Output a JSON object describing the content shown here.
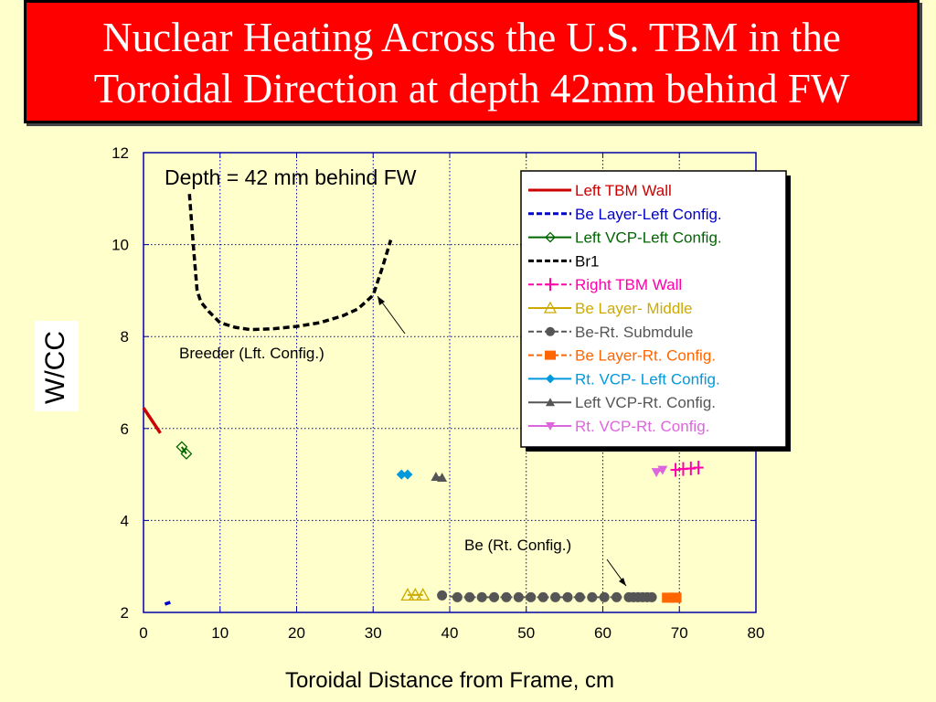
{
  "slide": {
    "title_line1": "Nuclear Heating Across the U.S. TBM in the",
    "title_line2": "Toroidal Direction at depth 42mm behind FW"
  },
  "chart_data": {
    "type": "scatter",
    "title": "",
    "xlabel": "Toroidal Distance from Frame, cm",
    "ylabel": "W/CC",
    "xlim": [
      0,
      80
    ],
    "ylim": [
      2,
      12
    ],
    "x_ticks": [
      "0",
      "10",
      "20",
      "30",
      "40",
      "50",
      "60",
      "70",
      "80"
    ],
    "y_ticks": [
      "2",
      "4",
      "6",
      "8",
      "10",
      "12"
    ],
    "grid": true,
    "legend_position": "top-right",
    "annotations": {
      "depth": "Depth = 42 mm behind FW",
      "breeder": "Breeder (Lft. Config.)",
      "be": "Be (Rt. Config.)"
    },
    "series": [
      {
        "name": "Left TBM Wall",
        "color": "#cc0000",
        "style": "solid",
        "marker": "none",
        "x": [
          0.0,
          0.8,
          1.6,
          2.2
        ],
        "y": [
          6.45,
          6.25,
          6.05,
          5.9
        ]
      },
      {
        "name": "Be Layer-Left Config.",
        "color": "#0000cc",
        "style": "dashed",
        "marker": "none",
        "x": [
          2.8,
          3.5
        ],
        "y": [
          2.18,
          2.22
        ]
      },
      {
        "name": "Left VCP-Left Config.",
        "color": "#006600",
        "style": "solid",
        "marker": "diamond-open",
        "x": [
          5.0,
          5.6
        ],
        "y": [
          5.6,
          5.45
        ]
      },
      {
        "name": "Br1",
        "color": "#000000",
        "style": "dashed",
        "marker": "none",
        "x": [
          6.0,
          6.5,
          7.0,
          7.5,
          8.5,
          10.0,
          12.0,
          14.0,
          17.0,
          20.0,
          23.0,
          26.0,
          28.0,
          30.0,
          31.2,
          32.3
        ],
        "y": [
          11.1,
          10.0,
          9.0,
          8.75,
          8.55,
          8.3,
          8.2,
          8.15,
          8.17,
          8.22,
          8.3,
          8.45,
          8.6,
          8.9,
          9.5,
          10.1
        ]
      },
      {
        "name": "Right TBM Wall",
        "color": "#ff00aa",
        "style": "dashed",
        "marker": "plus",
        "x": [
          69.5,
          70.5,
          71.5,
          72.5
        ],
        "y": [
          5.1,
          5.12,
          5.13,
          5.15
        ]
      },
      {
        "name": "Be Layer- Middle",
        "color": "#ccaa00",
        "style": "solid",
        "marker": "triangle-open",
        "x": [
          34.5,
          35.5,
          36.5
        ],
        "y": [
          2.38,
          2.38,
          2.38
        ]
      },
      {
        "name": "Be-Rt. Submdule",
        "color": "#555555",
        "style": "dashed",
        "marker": "circle",
        "x": [
          39.0,
          41.0,
          42.6,
          44.2,
          45.8,
          47.4,
          49.0,
          50.6,
          52.2,
          53.8,
          55.4,
          57.0,
          58.6,
          60.2,
          61.8,
          63.4,
          64.0,
          64.6,
          65.2,
          65.8,
          66.4
        ],
        "y": [
          2.37,
          2.33,
          2.33,
          2.33,
          2.33,
          2.33,
          2.33,
          2.33,
          2.33,
          2.33,
          2.33,
          2.33,
          2.33,
          2.33,
          2.33,
          2.33,
          2.33,
          2.33,
          2.33,
          2.33,
          2.33
        ]
      },
      {
        "name": "Be Layer-Rt. Config.",
        "color": "#ff6600",
        "style": "dashed",
        "marker": "square",
        "x": [
          68.5,
          69.5
        ],
        "y": [
          2.32,
          2.32
        ]
      },
      {
        "name": "Rt. VCP- Left Config.",
        "color": "#0099dd",
        "style": "solid",
        "marker": "diamond",
        "x": [
          33.7,
          34.5
        ],
        "y": [
          5.0,
          5.0
        ]
      },
      {
        "name": "Left VCP-Rt. Config.",
        "color": "#555555",
        "style": "solid",
        "marker": "triangle",
        "x": [
          38.2,
          39.0
        ],
        "y": [
          4.95,
          4.93
        ]
      },
      {
        "name": "Rt. VCP-Rt. Config.",
        "color": "#dd66dd",
        "style": "solid",
        "marker": "triangle-down",
        "x": [
          67.0,
          67.8
        ],
        "y": [
          5.05,
          5.1
        ]
      }
    ]
  }
}
